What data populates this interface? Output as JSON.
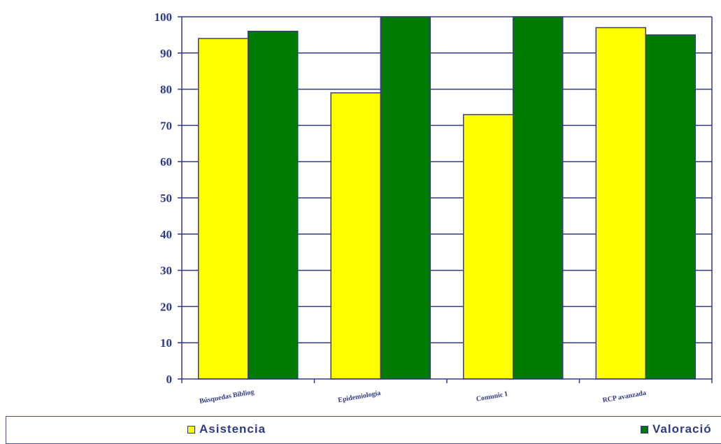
{
  "chart_data": {
    "type": "bar",
    "categories": [
      "Búsquedas Bibliog",
      "Epidemiología",
      "Comunic I",
      "RCP avanzada"
    ],
    "series": [
      {
        "name": "Asistencia",
        "color": "#ffff00",
        "values": [
          94,
          79,
          73,
          97
        ]
      },
      {
        "name": "Valoración",
        "color": "#007a00",
        "values": [
          96,
          100,
          100,
          95
        ]
      }
    ],
    "ylim": [
      0,
      100
    ],
    "yticks": [
      0,
      10,
      20,
      30,
      40,
      50,
      60,
      70,
      80,
      90,
      100
    ],
    "grid": true,
    "legend_position": "bottom"
  },
  "legend": {
    "asistencia_label": "Asistencia",
    "valoracion_label": "Valoració"
  },
  "colors": {
    "axis": "#2e3a87",
    "bar_outline": "#3a3f80"
  }
}
